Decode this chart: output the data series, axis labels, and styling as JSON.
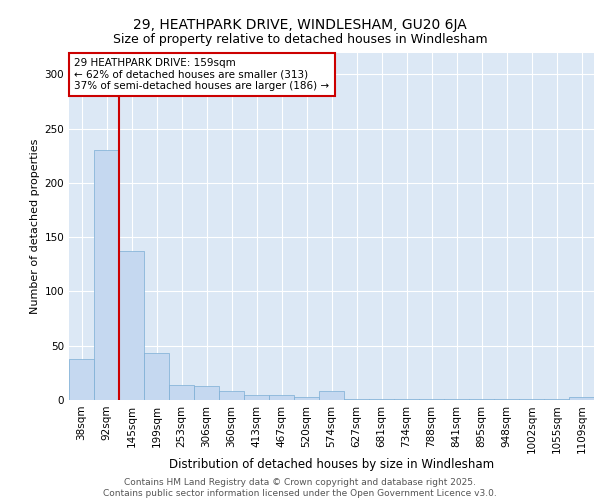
{
  "title1": "29, HEATHPARK DRIVE, WINDLESHAM, GU20 6JA",
  "title2": "Size of property relative to detached houses in Windlesham",
  "xlabel": "Distribution of detached houses by size in Windlesham",
  "ylabel": "Number of detached properties",
  "categories": [
    "38sqm",
    "92sqm",
    "145sqm",
    "199sqm",
    "253sqm",
    "306sqm",
    "360sqm",
    "413sqm",
    "467sqm",
    "520sqm",
    "574sqm",
    "627sqm",
    "681sqm",
    "734sqm",
    "788sqm",
    "841sqm",
    "895sqm",
    "948sqm",
    "1002sqm",
    "1055sqm",
    "1109sqm"
  ],
  "values": [
    38,
    230,
    137,
    43,
    14,
    13,
    8,
    5,
    5,
    3,
    8,
    1,
    1,
    1,
    1,
    1,
    1,
    1,
    1,
    1,
    3
  ],
  "bar_color": "#c5d8f0",
  "bar_edge_color": "#7aadd4",
  "plot_bg_color": "#dce8f5",
  "fig_bg_color": "#ffffff",
  "grid_color": "#ffffff",
  "red_line_index": 2,
  "annotation_text": "29 HEATHPARK DRIVE: 159sqm\n← 62% of detached houses are smaller (313)\n37% of semi-detached houses are larger (186) →",
  "annotation_box_facecolor": "#ffffff",
  "annotation_box_edgecolor": "#cc0000",
  "footer": "Contains HM Land Registry data © Crown copyright and database right 2025.\nContains public sector information licensed under the Open Government Licence v3.0.",
  "ylim": [
    0,
    320
  ],
  "yticks": [
    0,
    50,
    100,
    150,
    200,
    250,
    300
  ],
  "title1_fontsize": 10,
  "title2_fontsize": 9,
  "xlabel_fontsize": 8.5,
  "ylabel_fontsize": 8,
  "tick_fontsize": 7.5,
  "annot_fontsize": 7.5,
  "footer_fontsize": 6.5
}
